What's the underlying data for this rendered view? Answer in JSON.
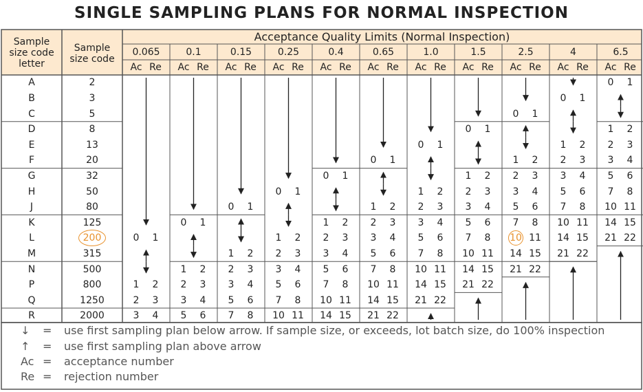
{
  "title": "SINGLE SAMPLING PLANS FOR NORMAL INSPECTION",
  "headers": {
    "code_letter": [
      "Sample",
      "size code",
      "letter"
    ],
    "sample_size": [
      "Sample",
      "size code"
    ],
    "aql_group": "Acceptance Quality Limits (Normal Inspection)",
    "ac": "Ac",
    "re": "Re"
  },
  "aql_levels": [
    "0.065",
    "0.1",
    "0.15",
    "0.25",
    "0.4",
    "0.65",
    "1.0",
    "1.5",
    "2.5",
    "4",
    "6.5"
  ],
  "rows": [
    {
      "letter": "A",
      "size": "2"
    },
    {
      "letter": "B",
      "size": "3"
    },
    {
      "letter": "C",
      "size": "5"
    },
    {
      "letter": "D",
      "size": "8"
    },
    {
      "letter": "E",
      "size": "13"
    },
    {
      "letter": "F",
      "size": "20"
    },
    {
      "letter": "G",
      "size": "32"
    },
    {
      "letter": "H",
      "size": "50"
    },
    {
      "letter": "J",
      "size": "80"
    },
    {
      "letter": "K",
      "size": "125"
    },
    {
      "letter": "L",
      "size": "200"
    },
    {
      "letter": "M",
      "size": "315"
    },
    {
      "letter": "N",
      "size": "500"
    },
    {
      "letter": "P",
      "size": "800"
    },
    {
      "letter": "Q",
      "size": "1250"
    },
    {
      "letter": "R",
      "size": "2000"
    }
  ],
  "plans": [
    [
      null,
      null,
      null,
      null,
      null,
      null,
      null,
      null,
      null,
      null,
      [
        0,
        1
      ]
    ],
    [
      null,
      null,
      null,
      null,
      null,
      null,
      null,
      null,
      null,
      [
        0,
        1
      ],
      null
    ],
    [
      null,
      null,
      null,
      null,
      null,
      null,
      null,
      null,
      [
        0,
        1
      ],
      null,
      null
    ],
    [
      null,
      null,
      null,
      null,
      null,
      null,
      null,
      [
        0,
        1
      ],
      null,
      null,
      [
        1,
        2
      ]
    ],
    [
      null,
      null,
      null,
      null,
      null,
      null,
      [
        0,
        1
      ],
      null,
      null,
      [
        1,
        2
      ],
      [
        2,
        3
      ]
    ],
    [
      null,
      null,
      null,
      null,
      null,
      [
        0,
        1
      ],
      null,
      null,
      [
        1,
        2
      ],
      [
        2,
        3
      ],
      [
        3,
        4
      ]
    ],
    [
      null,
      null,
      null,
      null,
      [
        0,
        1
      ],
      null,
      null,
      [
        1,
        2
      ],
      [
        2,
        3
      ],
      [
        3,
        4
      ],
      [
        5,
        6
      ]
    ],
    [
      null,
      null,
      null,
      [
        0,
        1
      ],
      null,
      null,
      [
        1,
        2
      ],
      [
        2,
        3
      ],
      [
        3,
        4
      ],
      [
        5,
        6
      ],
      [
        7,
        8
      ]
    ],
    [
      null,
      null,
      [
        0,
        1
      ],
      null,
      null,
      [
        1,
        2
      ],
      [
        2,
        3
      ],
      [
        3,
        4
      ],
      [
        5,
        6
      ],
      [
        7,
        8
      ],
      [
        10,
        11
      ]
    ],
    [
      null,
      [
        0,
        1
      ],
      null,
      null,
      [
        1,
        2
      ],
      [
        2,
        3
      ],
      [
        3,
        4
      ],
      [
        5,
        6
      ],
      [
        7,
        8
      ],
      [
        10,
        11
      ],
      [
        14,
        15
      ]
    ],
    [
      [
        0,
        1
      ],
      null,
      null,
      [
        1,
        2
      ],
      [
        2,
        3
      ],
      [
        3,
        4
      ],
      [
        5,
        6
      ],
      [
        7,
        8
      ],
      [
        10,
        11
      ],
      [
        14,
        15
      ],
      [
        21,
        22
      ]
    ],
    [
      null,
      null,
      [
        1,
        2
      ],
      [
        2,
        3
      ],
      [
        3,
        4
      ],
      [
        5,
        6
      ],
      [
        7,
        8
      ],
      [
        10,
        11
      ],
      [
        14,
        15
      ],
      [
        21,
        22
      ],
      null
    ],
    [
      null,
      [
        1,
        2
      ],
      [
        2,
        3
      ],
      [
        3,
        4
      ],
      [
        5,
        6
      ],
      [
        7,
        8
      ],
      [
        10,
        11
      ],
      [
        14,
        15
      ],
      [
        21,
        22
      ],
      null,
      null
    ],
    [
      [
        1,
        2
      ],
      [
        2,
        3
      ],
      [
        3,
        4
      ],
      [
        5,
        6
      ],
      [
        7,
        8
      ],
      [
        10,
        11
      ],
      [
        14,
        15
      ],
      [
        21,
        22
      ],
      null,
      null,
      null
    ],
    [
      [
        2,
        3
      ],
      [
        3,
        4
      ],
      [
        5,
        6
      ],
      [
        7,
        8
      ],
      [
        10,
        11
      ],
      [
        14,
        15
      ],
      [
        21,
        22
      ],
      null,
      null,
      null,
      null
    ],
    [
      [
        3,
        4
      ],
      [
        5,
        6
      ],
      [
        7,
        8
      ],
      [
        10,
        11
      ],
      [
        14,
        15
      ],
      [
        21,
        22
      ],
      null,
      null,
      null,
      null,
      null
    ]
  ],
  "highlights": {
    "sample_size_row": "L",
    "aql_value_cell": {
      "row": "L",
      "aql": "2.5",
      "value": 10
    }
  },
  "legend": [
    {
      "symbol": "↓",
      "eq": "=",
      "text": "use first sampling plan below arrow. If sample size, or exceeds, lot batch size, do 100% inspection"
    },
    {
      "symbol": "↑",
      "eq": "=",
      "text": "use first sampling plan above arrow"
    },
    {
      "symbol": "Ac",
      "eq": "=",
      "text": "acceptance number"
    },
    {
      "symbol": "Re",
      "eq": "=",
      "text": "rejection number"
    }
  ],
  "colors": {
    "header_fill": "#fde9cf",
    "border": "#555555",
    "highlight": "#e8912c",
    "text": "#222222",
    "legend_text": "#555555"
  }
}
